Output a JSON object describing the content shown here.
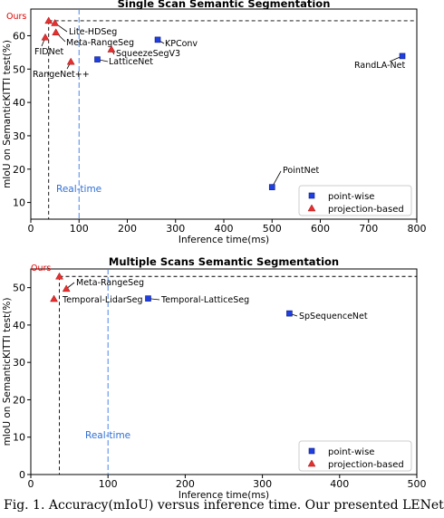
{
  "caption": "Fig. 1.    Accuracy(mIoU) versus inference time. Our presented LENet",
  "chart_data": [
    {
      "type": "scatter",
      "title": "Single Scan Semantic Segmentation",
      "xlabel": "Inference time(ms)",
      "ylabel": "mIoU on SemanticKITTI test(%)",
      "xlim": [
        0,
        800
      ],
      "ylim": [
        5,
        68
      ],
      "xticks": [
        0,
        100,
        200,
        300,
        400,
        500,
        600,
        700,
        800
      ],
      "yticks": [
        10,
        20,
        30,
        40,
        50,
        60
      ],
      "grid": false,
      "legend_position": "bottom-right",
      "realtime_x": 100,
      "realtime_label": "Real-time",
      "ours_ref": {
        "x": 37,
        "y": 64.5
      },
      "series": [
        {
          "name": "point-wise",
          "marker": "square",
          "color": "#1f3fe0",
          "points": [
            {
              "label": "KPConv",
              "x": 263,
              "y": 58.8
            },
            {
              "label": "LatticeNet",
              "x": 138,
              "y": 52.9
            },
            {
              "label": "RandLA-Net",
              "x": 770,
              "y": 53.9
            },
            {
              "label": "PointNet",
              "x": 500,
              "y": 14.6
            }
          ]
        },
        {
          "name": "projection-based",
          "marker": "triangle",
          "color": "#e53030",
          "points": [
            {
              "label": "Ours",
              "x": 37,
              "y": 64.5
            },
            {
              "label": "Lite-HDSeg",
              "x": 50,
              "y": 63.8
            },
            {
              "label": "Meta-RangeSeg",
              "x": 52,
              "y": 61.0
            },
            {
              "label": "FIDNet",
              "x": 30,
              "y": 59.5
            },
            {
              "label": "SqueezeSegV3",
              "x": 167,
              "y": 55.9
            },
            {
              "label": "RangeNet++",
              "x": 83,
              "y": 52.2
            }
          ]
        }
      ]
    },
    {
      "type": "scatter",
      "title": "Multiple Scans Semantic Segmentation",
      "xlabel": "Inference time(ms)",
      "ylabel": "mIoU on SemanticKITTI test(%)",
      "xlim": [
        0,
        500
      ],
      "ylim": [
        0,
        55
      ],
      "xticks": [
        0,
        100,
        200,
        300,
        400,
        500
      ],
      "yticks": [
        0,
        10,
        20,
        30,
        40,
        50
      ],
      "grid": false,
      "legend_position": "bottom-right",
      "realtime_x": 100,
      "realtime_label": "Real-time",
      "ours_ref": {
        "x": 37,
        "y": 53.0
      },
      "series": [
        {
          "name": "point-wise",
          "marker": "square",
          "color": "#1f3fe0",
          "points": [
            {
              "label": "Temporal-LatticeSeg",
              "x": 152,
              "y": 47.1
            },
            {
              "label": "SpSequenceNet",
              "x": 335,
              "y": 43.1
            }
          ]
        },
        {
          "name": "projection-based",
          "marker": "triangle",
          "color": "#e53030",
          "points": [
            {
              "label": "Ours",
              "x": 37,
              "y": 53.0
            },
            {
              "label": "Meta-RangeSeg",
              "x": 46,
              "y": 49.7
            },
            {
              "label": "Temporal-LidarSeg",
              "x": 30,
              "y": 47.0
            }
          ]
        }
      ]
    }
  ]
}
